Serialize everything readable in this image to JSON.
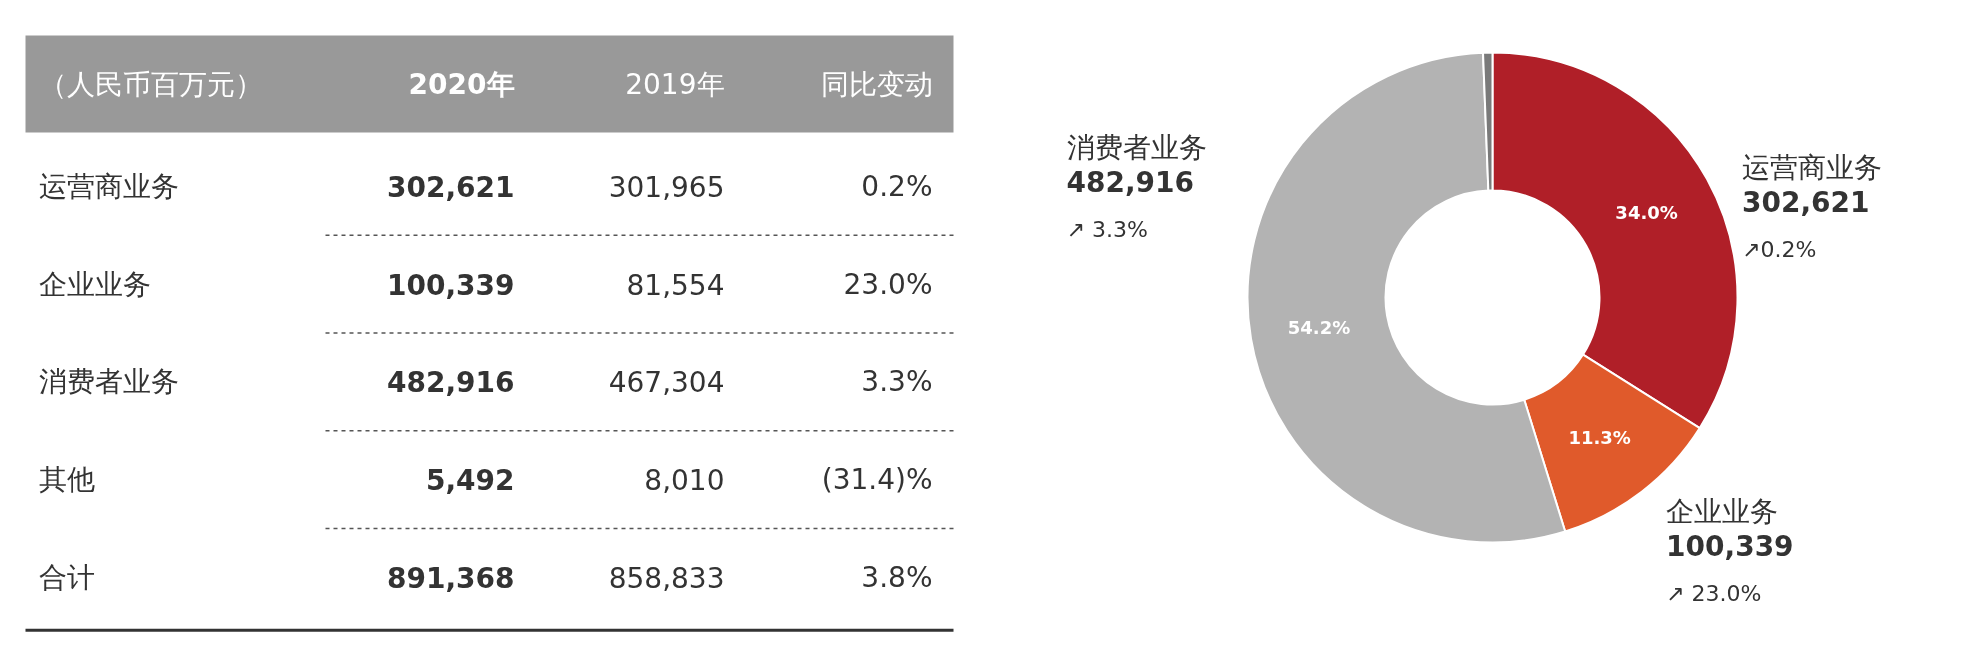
{
  "chart_data": [
    {
      "type": "other",
      "title": "（人民币百万元）",
      "categories": [
        "2020年",
        "2019年",
        "同比变动"
      ],
      "y_categories": [
        "运营商业务",
        "企业业务",
        "消费者业务",
        "其他",
        "合计"
      ],
      "cell_labels": [
        [
          "302,621",
          "301,965",
          "0.2%"
        ],
        [
          "100,339",
          "81,554",
          "23.0%"
        ],
        [
          "482,916",
          "467,304",
          "3.3%"
        ],
        [
          "5,492",
          "8,010",
          "(31.4)%"
        ],
        [
          "891,368",
          "858,833",
          "3.8%"
        ]
      ]
    },
    {
      "type": "donut",
      "categories": [
        "运营商业务",
        "企业业务",
        "消费者业务",
        null
      ],
      "values": [
        302621,
        100339,
        482916,
        5492
      ],
      "colors": [
        "#b01f28",
        "#e05a2b",
        "#b3b3b3",
        "#7a7a7a"
      ],
      "value_labels": [
        "302,621",
        "100,339",
        "482,916",
        null
      ],
      "annotations": [
        {
          "text": "34.0%",
          "x": "运营商业务"
        },
        {
          "text": "↗0.2%",
          "x": "运营商业务"
        },
        {
          "text": "11.3%",
          "x": "企业业务"
        },
        {
          "text": "↗ 23.0%",
          "x": "企业业务"
        },
        {
          "text": "54.2%",
          "x": "消费者业务"
        },
        {
          "text": "↗ 3.3%",
          "x": "消费者业务"
        }
      ]
    }
  ]
}
